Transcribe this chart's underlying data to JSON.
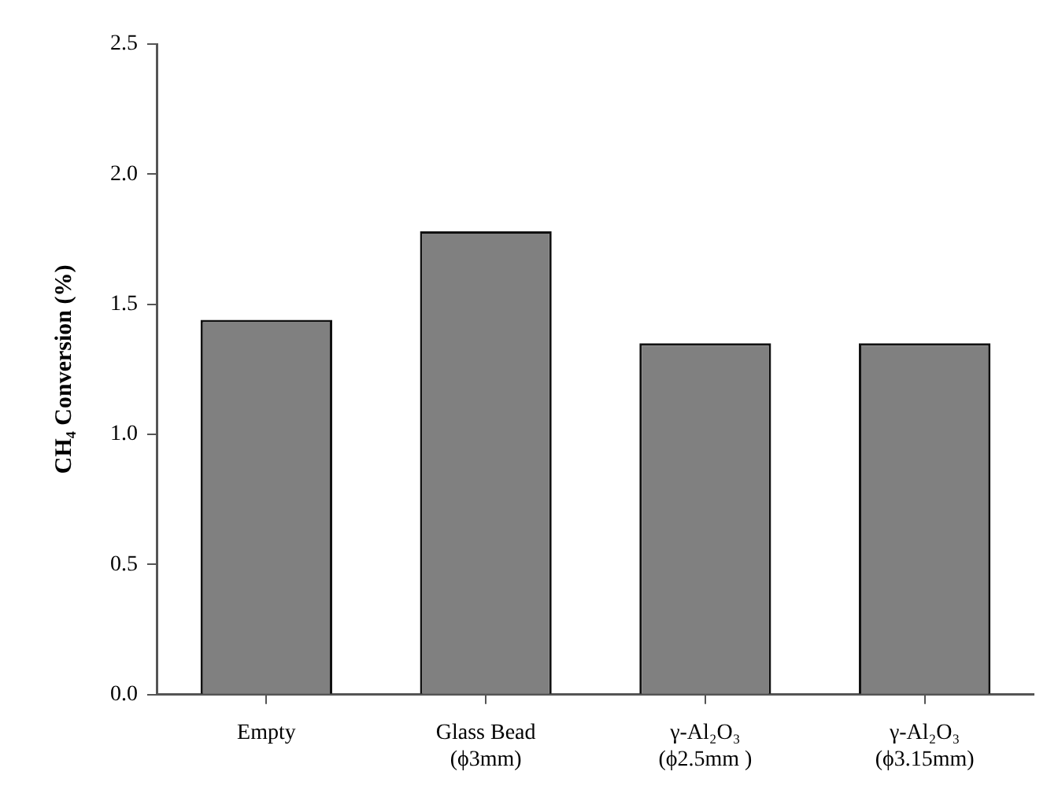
{
  "chart_data": {
    "type": "bar",
    "ylabel": "CH₄ Conversion (%)",
    "categories": [
      "Empty",
      "Glass Bead\n(ϕ3mm)",
      "γ-Al₂O₃\n(ϕ2.5mm )",
      "γ-Al₂O₃\n(ϕ3.15mm)"
    ],
    "values": [
      1.44,
      1.78,
      1.35,
      1.35
    ],
    "color": "#808080",
    "ylim": [
      0,
      2.5
    ],
    "yticks": [
      {
        "value": 0,
        "label": "0.0"
      },
      {
        "value": 0.5,
        "label": "0.5"
      },
      {
        "value": 1,
        "label": "1.0"
      },
      {
        "value": 1.5,
        "label": "1.5"
      },
      {
        "value": 2,
        "label": "2.0"
      },
      {
        "value": 2.5,
        "label": "2.5"
      }
    ],
    "grid": false,
    "legend": false
  }
}
